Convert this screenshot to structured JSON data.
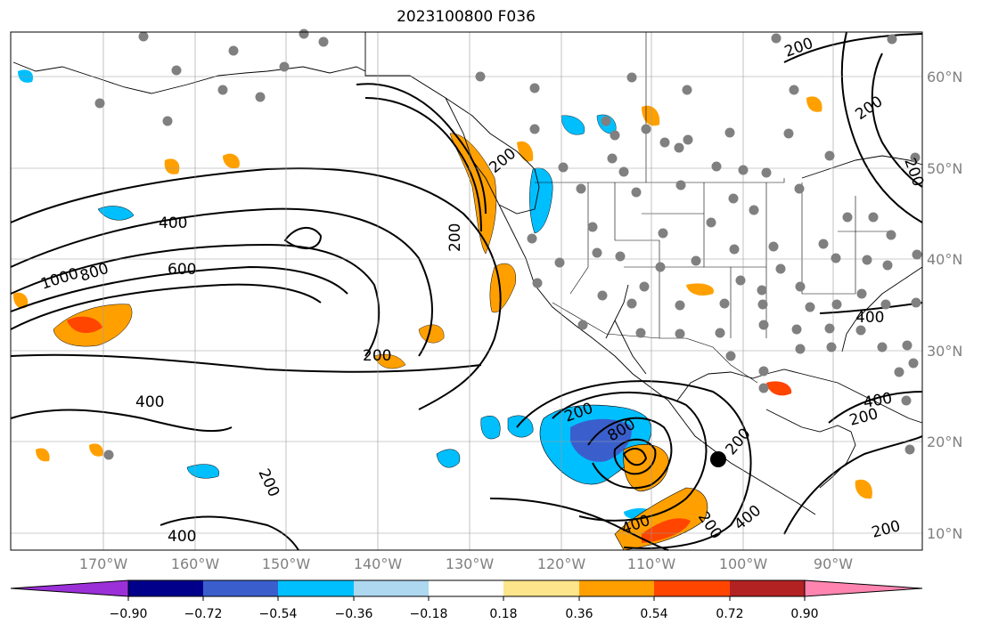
{
  "title": "2023100800 F036",
  "map": {
    "lat_labels": [
      "60°N",
      "50°N",
      "40°N",
      "30°N",
      "20°N",
      "10°N"
    ],
    "lon_labels": [
      "170°W",
      "160°W",
      "150°W",
      "140°W",
      "130°W",
      "120°W",
      "110°W",
      "100°W",
      "90°W"
    ],
    "contour_labels": [
      "200",
      "400",
      "600",
      "800",
      "1000",
      "200",
      "400",
      "200",
      "400",
      "200",
      "800",
      "200",
      "400",
      "200",
      "200",
      "400",
      "200",
      "400",
      "200",
      "400",
      "200",
      "200",
      "200"
    ],
    "marker": "storm-center-dot"
  },
  "colorbar": {
    "ticks": [
      "−0.90",
      "−0.72",
      "−0.54",
      "−0.36",
      "−0.18",
      "0.18",
      "0.36",
      "0.54",
      "0.72",
      "0.90"
    ],
    "colors": [
      "#9b30d8",
      "#00008b",
      "#3a5fcd",
      "#00bfff",
      "#add8f0",
      "#ffffff",
      "#fce58a",
      "#ffa000",
      "#ff4500",
      "#b22222",
      "#ff85b0"
    ]
  },
  "colors": {
    "contour": "#000000",
    "station": "#808080",
    "grid": "#999999"
  }
}
